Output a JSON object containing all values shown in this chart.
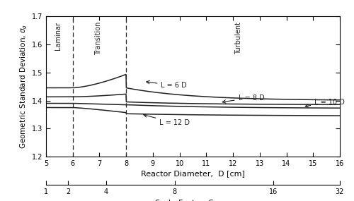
{
  "xlim": [
    5,
    16
  ],
  "ylim": [
    1.2,
    1.7
  ],
  "xlabel": "Reactor Diameter,  D [cm]",
  "ylabel": "Geometric Standard Deviation, σₙ",
  "xticks": [
    5,
    6,
    7,
    8,
    9,
    10,
    11,
    12,
    13,
    14,
    15,
    16
  ],
  "yticks": [
    1.2,
    1.3,
    1.4,
    1.5,
    1.6,
    1.7
  ],
  "vline1": 6.0,
  "vline2": 8.0,
  "label_laminar": "Laminar",
  "label_transition": "Transition",
  "label_turbulent": "Turbulent",
  "line_color": "#222222",
  "background": "#ffffff",
  "scale_ticks_pos": [
    5.0,
    5.83,
    7.25,
    9.82,
    13.5,
    16.0
  ],
  "scale_ticks_labels": [
    "1",
    "2",
    "4",
    "8",
    "16",
    "32"
  ]
}
